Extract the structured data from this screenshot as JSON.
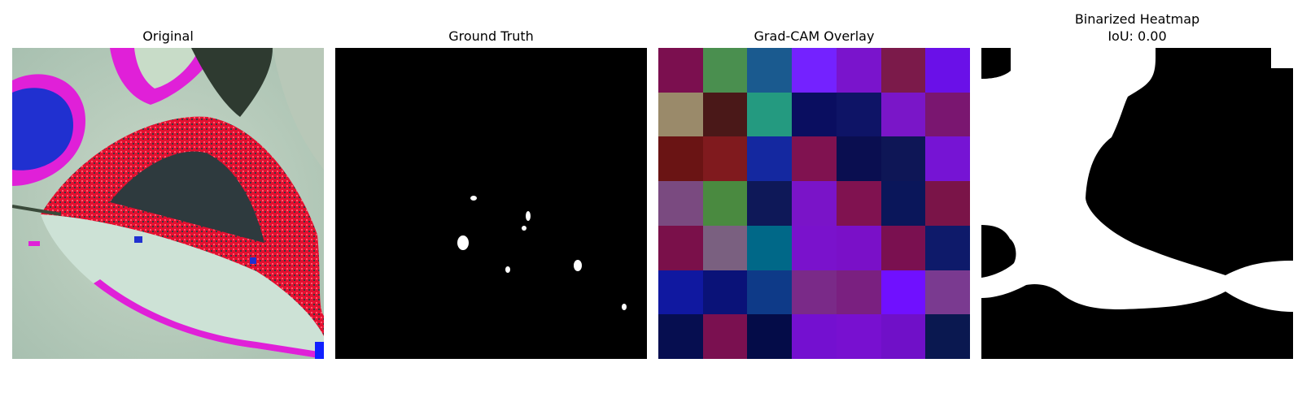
{
  "panels": [
    {
      "title": "Original"
    },
    {
      "title": "Ground Truth"
    },
    {
      "title": "Grad-CAM Overlay"
    },
    {
      "title": "Binarized Heatmap",
      "subtitle": "IoU: 0.00"
    }
  ],
  "gradcam_colors": [
    [
      "#7b0f4f",
      "#4a8f4f",
      "#1a5a8f",
      "#7422ff",
      "#7a14cc",
      "#7b1a4a",
      "#6a10e8"
    ],
    [
      "#9a8a6a",
      "#4a1818",
      "#249a80",
      "#0a0e60",
      "#0e1466",
      "#7a16c8",
      "#7a1670"
    ],
    [
      "#6a1414",
      "#801a1e",
      "#1428a0",
      "#801250",
      "#0a0e50",
      "#0e1656",
      "#7614d4"
    ],
    [
      "#7a4a80",
      "#4a8a40",
      "#0e1858",
      "#7a14c8",
      "#801250",
      "#0a165a",
      "#7a1448"
    ],
    [
      "#7a104a",
      "#7a6080",
      "#006888",
      "#7a12cc",
      "#7a10c8",
      "#7a1050",
      "#0e1a6a"
    ],
    [
      "#1018a0",
      "#0a1278",
      "#0e3a88",
      "#7a2a88",
      "#7a2080",
      "#7010ff",
      "#7a3a90"
    ],
    [
      "#060e50",
      "#7a1050",
      "#040c48",
      "#7410d0",
      "#7810d0",
      "#7010c8",
      "#0a1850"
    ]
  ]
}
